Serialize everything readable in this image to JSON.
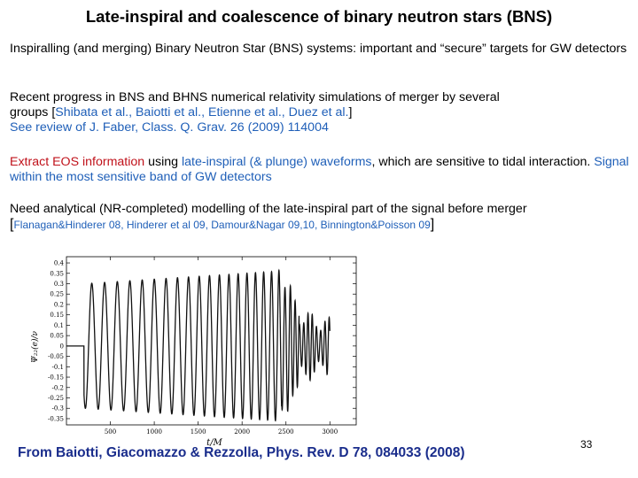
{
  "slide": {
    "title": "Late-inspiral and coalescence of binary neutron stars (BNS)",
    "p1": "Inspiralling (and merging) Binary Neutron Star (BNS) systems: important and “secure” targets for GW detectors",
    "p2_line1": "Recent progress in BNS and BHNS numerical relativity simulations of merger by several",
    "p2_line2_pre": "groups [",
    "p2_line2_refs": "Shibata et al., Baiotti et al., Etienne et al., Duez et al.",
    "p2_line2_post": "]",
    "p2_line3": "See review of J. Faber, Class. Q. Grav. 26 (2009) 114004",
    "p3_a": "Extract EOS information",
    "p3_b": " using ",
    "p3_c": "late-inspiral (& plunge) waveforms",
    "p3_d": ", which are sensitive to tidal interaction.  ",
    "p3_e": "Signal within the most sensitive band of GW detectors",
    "p4_line1": "Need analytical (NR-completed) modelling of the late-inspiral part of the signal before merger",
    "p4_open": "[",
    "p4_refs": "Flanagan&Hinderer 08, Hinderer et al 09, Damour&Nagar 09,10, Binnington&Poisson 09",
    "p4_close": "]",
    "footer": "From Baiotti, Giacomazzo & Rezzolla, Phys. Rev. D 78, 084033 (2008)",
    "page_number": "33"
  },
  "plot": {
    "ylabel": "Ψ₂₂(e)/ν",
    "xlabel": "t/M",
    "y_ticks": [
      "0.4",
      "0.35",
      "0.3",
      "0.25",
      "0.2",
      "0.15",
      "0.1",
      "0.05",
      "0",
      "-0.05",
      "-0.1",
      "-0.15",
      "-0.2",
      "-0.25",
      "-0.3",
      "-0.35"
    ],
    "x_ticks": [
      "500",
      "1000",
      "1500",
      "2000",
      "2500",
      "3000"
    ],
    "x_tick_values": [
      500,
      1000,
      1500,
      2000,
      2500,
      3000
    ],
    "y_tick_values": [
      0.4,
      0.35,
      0.3,
      0.25,
      0.2,
      0.15,
      0.1,
      0.05,
      0,
      -0.05,
      -0.1,
      -0.15,
      -0.2,
      -0.25,
      -0.3,
      -0.35
    ],
    "xlim": [
      0,
      3300
    ],
    "ylim": [
      -0.38,
      0.43
    ]
  }
}
